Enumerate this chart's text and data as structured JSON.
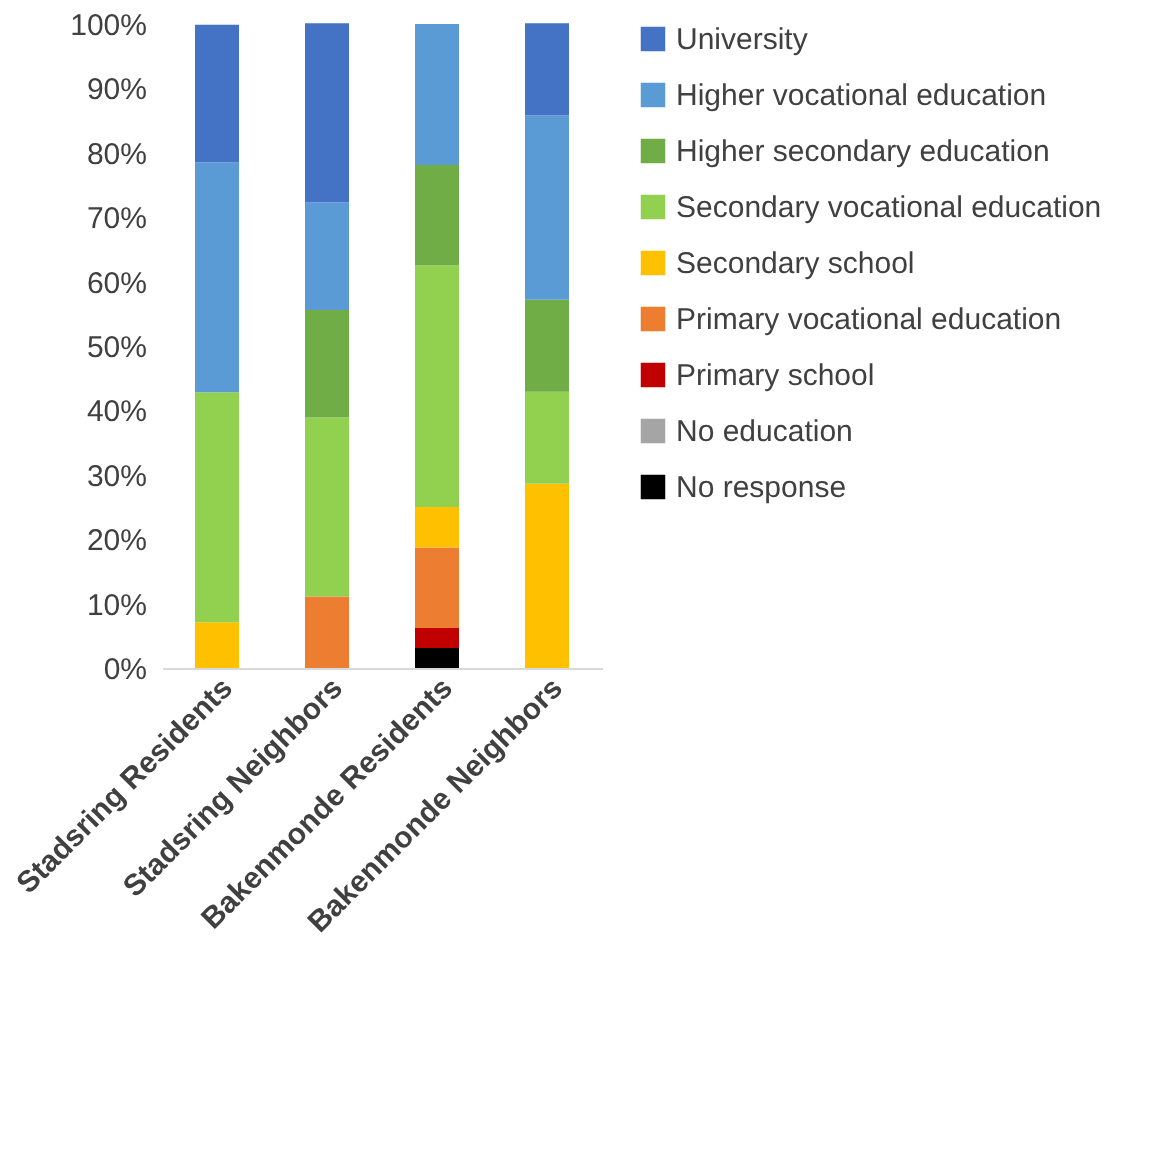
{
  "chart_data": {
    "type": "bar",
    "stacked": true,
    "legend": "right",
    "grid": false,
    "categories": [
      "Stadsring Residents",
      "Stadsring Neighbors",
      "Bakenmonde Residents",
      "Bakenmonde Neighbors"
    ],
    "ylim": [
      0,
      100
    ],
    "yticks": [
      {
        "value": 0,
        "label": "0%"
      },
      {
        "value": 10,
        "label": "10%"
      },
      {
        "value": 20,
        "label": "20%"
      },
      {
        "value": 30,
        "label": "30%"
      },
      {
        "value": 40,
        "label": "40%"
      },
      {
        "value": 50,
        "label": "50%"
      },
      {
        "value": 60,
        "label": "60%"
      },
      {
        "value": 70,
        "label": "70%"
      },
      {
        "value": 80,
        "label": "80%"
      },
      {
        "value": 90,
        "label": "90%"
      },
      {
        "value": 100,
        "label": "100%"
      }
    ],
    "series": [
      {
        "name": "No response",
        "color": "#000000",
        "values": [
          0,
          0,
          3.1,
          0
        ]
      },
      {
        "name": "No education",
        "color": "#a5a5a5",
        "values": [
          0,
          0,
          0,
          0
        ]
      },
      {
        "name": "Primary school",
        "color": "#c00000",
        "values": [
          0,
          0,
          3.1,
          0
        ]
      },
      {
        "name": "Primary vocational education",
        "color": "#ed7d31",
        "values": [
          0,
          11.1,
          12.5,
          0
        ]
      },
      {
        "name": "Secondary school",
        "color": "#ffc000",
        "values": [
          7.1,
          0,
          6.3,
          28.6
        ]
      },
      {
        "name": "Secondary vocational education",
        "color": "#92d050",
        "values": [
          35.7,
          27.8,
          37.5,
          14.3
        ]
      },
      {
        "name": "Higher secondary education",
        "color": "#70ad47",
        "values": [
          0,
          16.7,
          15.6,
          14.3
        ]
      },
      {
        "name": "Higher vocational education",
        "color": "#5b9bd5",
        "values": [
          35.7,
          16.7,
          21.9,
          28.6
        ]
      },
      {
        "name": "University",
        "color": "#4472c4",
        "values": [
          21.4,
          27.8,
          0,
          14.3
        ]
      }
    ]
  }
}
